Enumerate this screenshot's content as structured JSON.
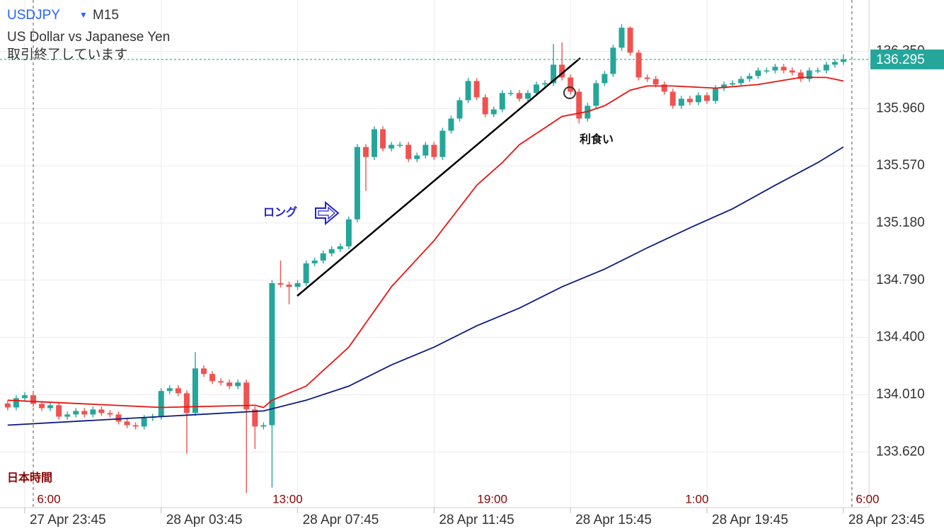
{
  "chart_data": {
    "type": "candlestick",
    "title": "USDJPY",
    "title_marker": "▼",
    "timeframe": "M15",
    "subtitle": "US Dollar vs Japanese Yen",
    "status": "取引終了しています",
    "time_zone_label": "日本時間",
    "annotations": [
      "利食い",
      "ロング"
    ],
    "up_color": "#26a69a",
    "down_color": "#ef5350",
    "grid": true,
    "xlim": [
      -0.9,
      101
    ],
    "ylim": [
      133.24,
      136.7
    ],
    "yticks": [
      {
        "value": 136.35,
        "label": "136.350"
      },
      {
        "value": 135.96,
        "label": "135.960"
      },
      {
        "value": 135.57,
        "label": "135.570"
      },
      {
        "value": 135.18,
        "label": "135.180"
      },
      {
        "value": 134.79,
        "label": "134.790"
      },
      {
        "value": 134.4,
        "label": "134.400"
      },
      {
        "value": 134.01,
        "label": "134.010"
      },
      {
        "value": 133.62,
        "label": "133.620"
      }
    ],
    "xticks": [
      {
        "value": 2,
        "label": "27 Apr 23:45"
      },
      {
        "value": 18,
        "label": "28 Apr 03:45"
      },
      {
        "value": 34,
        "label": "28 Apr 07:45"
      },
      {
        "value": 50,
        "label": "28 Apr 11:45"
      },
      {
        "value": 66,
        "label": "28 Apr 15:45"
      },
      {
        "value": 82,
        "label": "28 Apr 19:45"
      },
      {
        "value": 98,
        "label": "28 Apr 23:45"
      }
    ],
    "local_time_ticks": [
      {
        "value": 3,
        "label": "6:00"
      },
      {
        "value": 31,
        "label": "13:00"
      },
      {
        "value": 55,
        "label": "19:00"
      },
      {
        "value": 79,
        "label": "1:00"
      },
      {
        "value": 99,
        "label": "6:00"
      }
    ],
    "price_line": 136.295,
    "price_line_color": "#26a69a",
    "candles": {
      "open": [
        133.95,
        133.923,
        133.986,
        134.006,
        133.947,
        133.918,
        133.938,
        133.86,
        133.875,
        133.899,
        133.875,
        133.909,
        133.885,
        133.875,
        133.827,
        133.802,
        133.793,
        133.851,
        133.86,
        134.035,
        134.054,
        134.02,
        133.885,
        134.189,
        134.151,
        134.102,
        134.093,
        134.068,
        134.093,
        133.909,
        133.793,
        133.802,
        134.77,
        134.76,
        134.745,
        134.77,
        134.905,
        134.924,
        134.973,
        135.002,
        135.021,
        135.205,
        135.698,
        135.63,
        135.819,
        135.688,
        135.713,
        135.713,
        135.616,
        135.64,
        135.713,
        135.63,
        135.809,
        135.892,
        136.017,
        136.148,
        136.037,
        135.921,
        135.954,
        136.066,
        136.066,
        136.027,
        136.066,
        136.124,
        136.133,
        136.259,
        136.172,
        136.075,
        135.892,
        135.979,
        136.133,
        136.196,
        136.375,
        136.511,
        136.341,
        136.172,
        136.162,
        136.124,
        136.075,
        135.979,
        136.027,
        136.003,
        136.051,
        136.012,
        136.099,
        136.124,
        136.133,
        136.162,
        136.182,
        136.22,
        136.22,
        136.245,
        136.22,
        136.206,
        136.162,
        136.22,
        136.22,
        136.259,
        136.278
      ],
      "high": [
        133.97,
        134.006,
        134.026,
        134.026,
        133.967,
        133.958,
        133.958,
        133.895,
        133.919,
        133.919,
        133.929,
        133.929,
        133.905,
        133.895,
        133.847,
        133.822,
        133.871,
        133.88,
        134.055,
        134.074,
        134.074,
        134.04,
        134.3,
        134.209,
        134.171,
        134.122,
        134.113,
        134.113,
        134.113,
        133.929,
        133.822,
        134.79,
        134.924,
        134.78,
        134.79,
        134.925,
        134.944,
        134.993,
        135.022,
        135.041,
        135.225,
        135.718,
        135.718,
        135.839,
        135.839,
        135.733,
        135.733,
        135.733,
        135.66,
        135.733,
        135.733,
        135.829,
        135.912,
        136.037,
        136.168,
        136.168,
        136.057,
        135.974,
        136.086,
        136.086,
        136.086,
        136.086,
        136.144,
        136.153,
        136.4,
        136.41,
        136.192,
        136.095,
        135.999,
        136.153,
        136.216,
        136.395,
        136.535,
        136.52,
        136.361,
        136.192,
        136.182,
        136.144,
        136.095,
        136.047,
        136.047,
        136.071,
        136.071,
        136.119,
        136.144,
        136.153,
        136.182,
        136.202,
        136.24,
        136.24,
        136.265,
        136.265,
        136.24,
        136.226,
        136.24,
        136.24,
        136.279,
        136.298,
        136.33
      ],
      "low": [
        133.903,
        133.903,
        133.966,
        133.927,
        133.898,
        133.898,
        133.84,
        133.84,
        133.855,
        133.855,
        133.855,
        133.865,
        133.855,
        133.807,
        133.782,
        133.773,
        133.773,
        133.831,
        133.84,
        134.015,
        134.0,
        133.609,
        133.865,
        134.131,
        134.082,
        134.073,
        134.048,
        134.048,
        133.34,
        133.64,
        133.773,
        133.377,
        134.74,
        134.625,
        134.725,
        134.75,
        134.885,
        134.904,
        134.953,
        134.982,
        135.001,
        135.185,
        135.398,
        135.61,
        135.668,
        135.668,
        135.693,
        135.596,
        135.596,
        135.62,
        135.61,
        135.61,
        135.789,
        135.872,
        135.997,
        136.017,
        135.901,
        135.901,
        135.934,
        136.046,
        136.007,
        136.007,
        136.046,
        136.104,
        136.113,
        136.152,
        136.055,
        135.858,
        135.872,
        135.959,
        136.113,
        136.176,
        136.355,
        136.321,
        136.152,
        136.142,
        136.104,
        136.055,
        135.959,
        135.959,
        135.983,
        135.983,
        135.992,
        135.992,
        136.079,
        136.104,
        136.113,
        136.142,
        136.162,
        136.2,
        136.2,
        136.2,
        136.186,
        136.142,
        136.142,
        136.2,
        136.2,
        136.239,
        136.258
      ],
      "close": [
        133.923,
        133.986,
        134.006,
        133.947,
        133.918,
        133.938,
        133.86,
        133.875,
        133.899,
        133.875,
        133.909,
        133.885,
        133.875,
        133.827,
        133.802,
        133.793,
        133.851,
        133.86,
        134.035,
        134.054,
        134.02,
        133.885,
        134.189,
        134.151,
        134.102,
        134.093,
        134.068,
        134.093,
        133.909,
        133.793,
        133.802,
        134.77,
        134.76,
        134.745,
        134.77,
        134.905,
        134.924,
        134.973,
        135.002,
        135.021,
        135.205,
        135.698,
        135.63,
        135.819,
        135.688,
        135.713,
        135.713,
        135.616,
        135.64,
        135.713,
        135.63,
        135.809,
        135.892,
        136.017,
        136.148,
        136.037,
        135.921,
        135.954,
        136.066,
        136.066,
        136.027,
        136.066,
        136.124,
        136.133,
        136.259,
        136.172,
        136.075,
        135.892,
        135.979,
        136.133,
        136.196,
        136.375,
        136.511,
        136.341,
        136.172,
        136.162,
        136.124,
        136.075,
        135.979,
        136.027,
        136.003,
        136.051,
        136.012,
        136.099,
        136.124,
        136.133,
        136.162,
        136.182,
        136.22,
        136.22,
        136.245,
        136.22,
        136.206,
        136.162,
        136.22,
        136.22,
        136.259,
        136.278,
        136.295
      ]
    },
    "series": [
      {
        "color": "#e8140f",
        "x": [
          0,
          18,
          29,
          30,
          31,
          35,
          40,
          45,
          50,
          55,
          58,
          60,
          65,
          68,
          70,
          73,
          75,
          78,
          83,
          88,
          93,
          96,
          98
        ],
        "values": [
          133.972,
          133.923,
          133.938,
          133.923,
          133.972,
          134.068,
          134.334,
          134.745,
          135.06,
          135.437,
          135.592,
          135.713,
          135.906,
          135.94,
          135.979,
          136.085,
          136.114,
          136.114,
          136.099,
          136.124,
          136.172,
          136.172,
          136.148
        ]
      },
      {
        "color": "#0d1a80",
        "x": [
          0,
          15,
          30,
          35,
          40,
          45,
          50,
          55,
          60,
          65,
          70,
          75,
          80,
          85,
          90,
          95,
          98
        ],
        "values": [
          133.802,
          133.851,
          133.899,
          133.972,
          134.068,
          134.213,
          134.334,
          134.479,
          134.6,
          134.745,
          134.866,
          135.011,
          135.147,
          135.277,
          135.437,
          135.592,
          135.698
        ]
      }
    ]
  }
}
